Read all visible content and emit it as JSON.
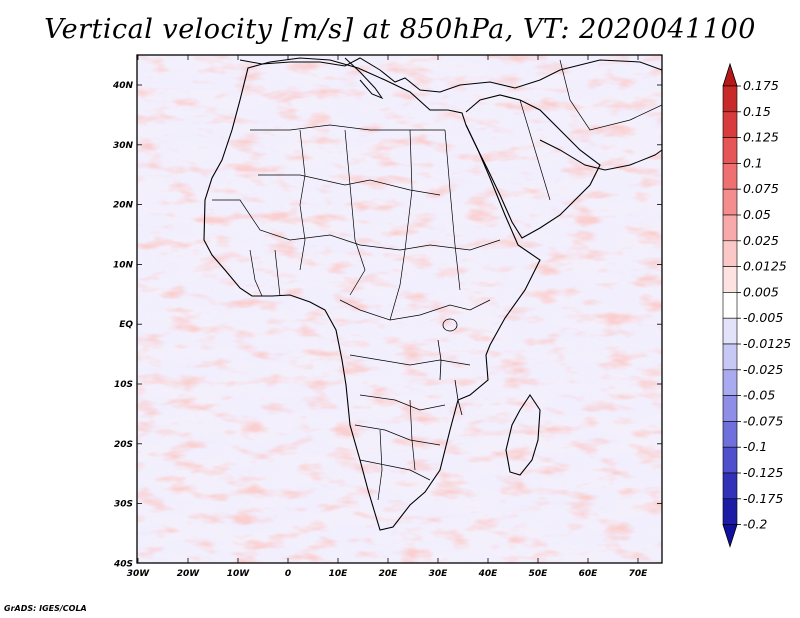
{
  "title": "Vertical velocity [m/s] at 850hPa, VT: 2020041100",
  "credit": "GrADS: IGES/COLA",
  "map": {
    "lat_ticks": [
      "40N",
      "30N",
      "20N",
      "10N",
      "EQ",
      "10S",
      "20S",
      "30S",
      "40S"
    ],
    "lon_ticks": [
      "30W",
      "20W",
      "10W",
      "0",
      "10E",
      "20E",
      "30E",
      "40E",
      "50E",
      "60E",
      "70E"
    ]
  },
  "colorbar": {
    "labels": [
      "0.175",
      "0.15",
      "0.125",
      "0.1",
      "0.075",
      "0.05",
      "0.025",
      "0.0125",
      "0.005",
      "-0.005",
      "-0.0125",
      "-0.025",
      "-0.05",
      "-0.075",
      "-0.1",
      "-0.125",
      "-0.175",
      "-0.2"
    ],
    "colors": [
      "#b51818",
      "#c82a2a",
      "#d83c3c",
      "#e65656",
      "#ef7070",
      "#f48e8e",
      "#f8aaaa",
      "#fbc8c8",
      "#fde2e2",
      "#ffffff",
      "#e2e2fb",
      "#c8c8f6",
      "#aaaaf0",
      "#8e8ee8",
      "#7070dc",
      "#5050cc",
      "#3232b8",
      "#1c1ca4",
      "#1010a0"
    ]
  }
}
